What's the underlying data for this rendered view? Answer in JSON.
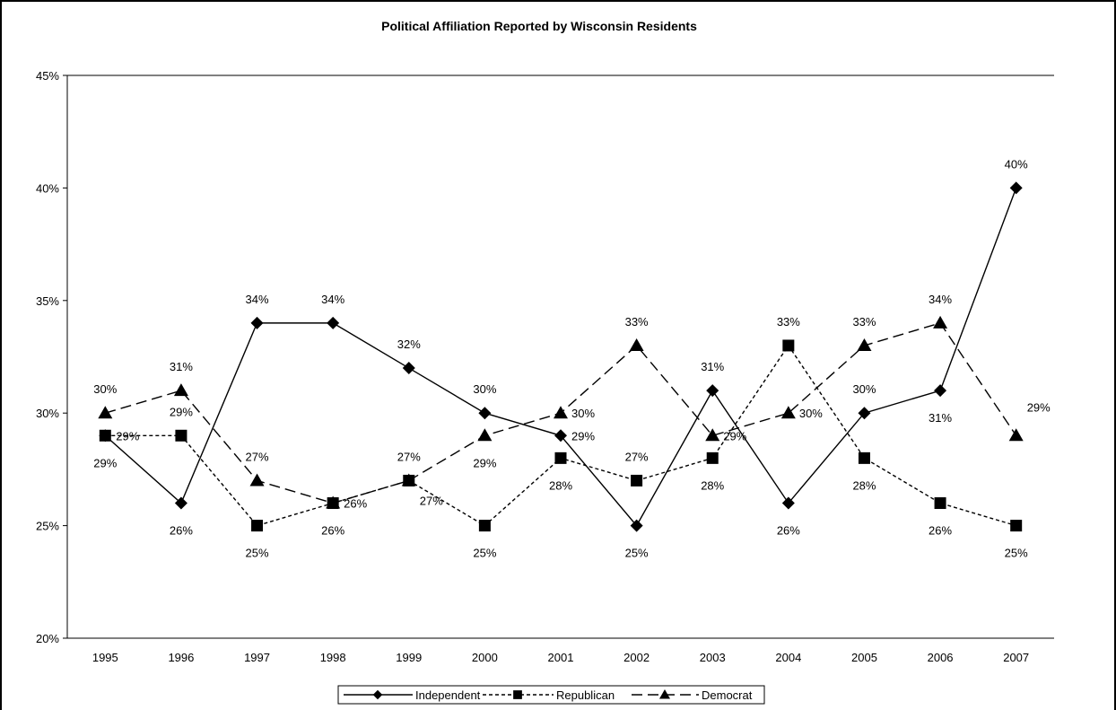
{
  "chart_data": {
    "type": "line",
    "title": "Political Affiliation Reported by Wisconsin Residents",
    "xlabel": "",
    "ylabel": "",
    "categories": [
      "1995",
      "1996",
      "1997",
      "1998",
      "1999",
      "2000",
      "2001",
      "2002",
      "2003",
      "2004",
      "2005",
      "2006",
      "2007"
    ],
    "ylim": [
      20,
      45
    ],
    "yticks": [
      20,
      25,
      30,
      35,
      40,
      45
    ],
    "ytick_labels": [
      "20%",
      "25%",
      "30%",
      "35%",
      "40%",
      "45%"
    ],
    "grid": "top line only",
    "legend_position": "bottom",
    "series": [
      {
        "name": "Independent",
        "marker": "diamond",
        "line_style": "solid",
        "values": [
          29,
          26,
          34,
          34,
          32,
          30,
          29,
          25,
          31,
          26,
          30,
          31,
          40
        ],
        "labels": [
          "29%",
          "26%",
          "34%",
          "34%",
          "32%",
          "30%",
          "29%",
          "25%",
          "31%",
          "26%",
          "30%",
          "31%",
          "40%"
        ],
        "label_pos": [
          "below",
          "below",
          "above",
          "above",
          "above",
          "above",
          "right",
          "below",
          "above",
          "below",
          "above",
          "below",
          "above"
        ]
      },
      {
        "name": "Republican",
        "marker": "square",
        "line_style": "dotted",
        "values": [
          29,
          29,
          25,
          26,
          27,
          25,
          28,
          27,
          28,
          33,
          28,
          26,
          25
        ],
        "labels": [
          "29%",
          "29%",
          "25%",
          "26%",
          "27%",
          "25%",
          "28%",
          "27%",
          "28%",
          "33%",
          "28%",
          "26%",
          "25%"
        ],
        "label_pos": [
          "right",
          "above",
          "below",
          "below",
          "below-right",
          "below",
          "below",
          "above",
          "below",
          "above",
          "below",
          "below",
          "below"
        ]
      },
      {
        "name": "Democrat",
        "marker": "triangle",
        "line_style": "dashed",
        "values": [
          30,
          31,
          27,
          26,
          27,
          29,
          30,
          33,
          29,
          30,
          33,
          34,
          29
        ],
        "labels": [
          "30%",
          "31%",
          "27%",
          "26%",
          "27%",
          "29%",
          "30%",
          "33%",
          "29%",
          "30%",
          "33%",
          "34%",
          "29%"
        ],
        "label_pos": [
          "above",
          "above",
          "above",
          "right",
          "above",
          "below",
          "right",
          "above",
          "right",
          "right",
          "above",
          "above",
          "above-right"
        ]
      }
    ]
  }
}
